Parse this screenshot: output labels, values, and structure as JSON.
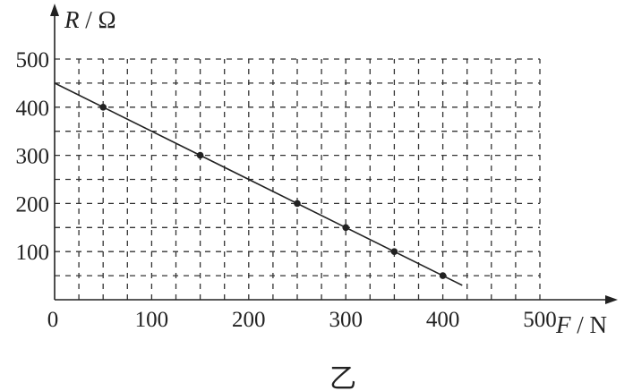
{
  "chart_data": {
    "type": "scatter",
    "xlabel": "F/N",
    "ylabel": "R/Ω",
    "xlabel_parts": {
      "var": "F",
      "unit": "N"
    },
    "ylabel_parts": {
      "var": "R",
      "unit": "Ω"
    },
    "xlim": [
      0,
      500
    ],
    "ylim": [
      0,
      500
    ],
    "x_ticks": [
      0,
      100,
      200,
      300,
      400,
      500
    ],
    "y_ticks": [
      100,
      200,
      300,
      400,
      500
    ],
    "grid": true,
    "grid_style": "dashed",
    "x_grid_step": 25,
    "y_grid_step": 50,
    "points": [
      {
        "x": 50,
        "y": 400
      },
      {
        "x": 150,
        "y": 300
      },
      {
        "x": 250,
        "y": 200
      },
      {
        "x": 300,
        "y": 150
      },
      {
        "x": 350,
        "y": 100
      },
      {
        "x": 400,
        "y": 50
      }
    ],
    "fit_line": {
      "x": [
        0,
        420
      ],
      "y": [
        450,
        30
      ]
    },
    "caption": "乙"
  }
}
